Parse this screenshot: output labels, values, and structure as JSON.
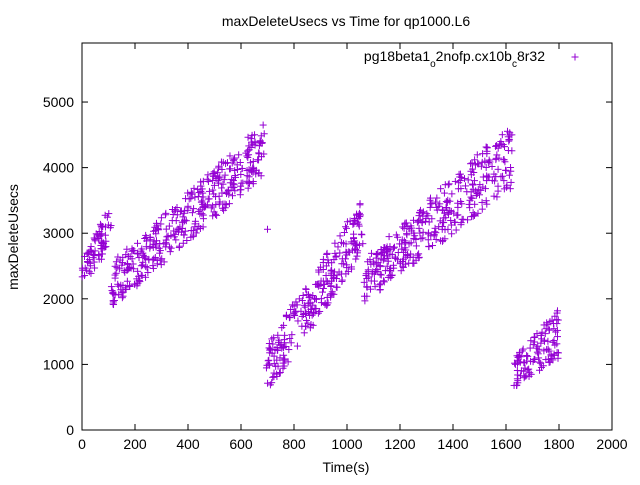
{
  "chart_data": {
    "type": "scatter",
    "title": "maxDeleteUsecs vs Time for qp1000.L6",
    "xlabel": "Time(s)",
    "ylabel": "maxDeleteUsecs",
    "xlim": [
      0,
      2000
    ],
    "ylim": [
      0,
      5900
    ],
    "x_ticks": [
      0,
      200,
      400,
      600,
      800,
      1000,
      1200,
      1400,
      1600,
      1800,
      2000
    ],
    "y_ticks": [
      0,
      1000,
      2000,
      3000,
      4000,
      5000
    ],
    "grid": false,
    "legend_position": "top-right",
    "marker": "+",
    "color": "#9400d3",
    "legend": {
      "label_parts": [
        {
          "text": "pg18beta1",
          "sub": false
        },
        {
          "text": "o",
          "sub": true
        },
        {
          "text": "2nofp.cx10b",
          "sub": false
        },
        {
          "text": "c",
          "sub": true
        },
        {
          "text": "8r32",
          "sub": false
        }
      ]
    },
    "series": [
      {
        "segments": [
          {
            "x_start": 0,
            "x_end": 110,
            "count": 70,
            "y_lo_start": 2200,
            "y_hi_start": 2600,
            "y_lo_end": 2800,
            "y_hi_end": 3450
          },
          {
            "x_start": 110,
            "x_end": 690,
            "count": 380,
            "y_lo_start": 1850,
            "y_hi_start": 2550,
            "y_lo_end": 3900,
            "y_hi_end": 4700
          },
          {
            "x_start": 695,
            "x_end": 1060,
            "count": 250,
            "y_lo_start": 550,
            "y_hi_start": 1300,
            "y_lo_end": 2700,
            "y_hi_end": 3550
          },
          {
            "x_start": 1065,
            "x_end": 1625,
            "count": 360,
            "y_lo_start": 1950,
            "y_hi_start": 2600,
            "y_lo_end": 3700,
            "y_hi_end": 4700
          },
          {
            "x_start": 1630,
            "x_end": 1800,
            "count": 110,
            "y_lo_start": 650,
            "y_hi_start": 1100,
            "y_lo_end": 1100,
            "y_hi_end": 1850
          }
        ],
        "outliers": [
          {
            "x": 700,
            "y": 3060
          }
        ]
      }
    ]
  }
}
